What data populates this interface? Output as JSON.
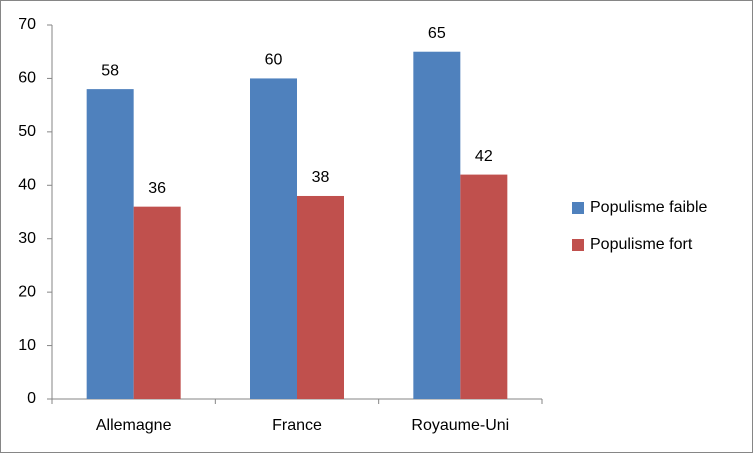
{
  "chart_data": {
    "type": "bar",
    "categories": [
      "Allemagne",
      "France",
      "Royaume-Uni"
    ],
    "series": [
      {
        "name": "Populisme faible",
        "color": "#4f81bd",
        "values": [
          58,
          60,
          65
        ]
      },
      {
        "name": "Populisme fort",
        "color": "#c0504d",
        "values": [
          36,
          38,
          42
        ]
      }
    ],
    "ylim": [
      0,
      70
    ],
    "yticks": [
      0,
      10,
      20,
      30,
      40,
      50,
      60,
      70
    ],
    "grid": false,
    "legend": "right",
    "data_labels": true
  }
}
